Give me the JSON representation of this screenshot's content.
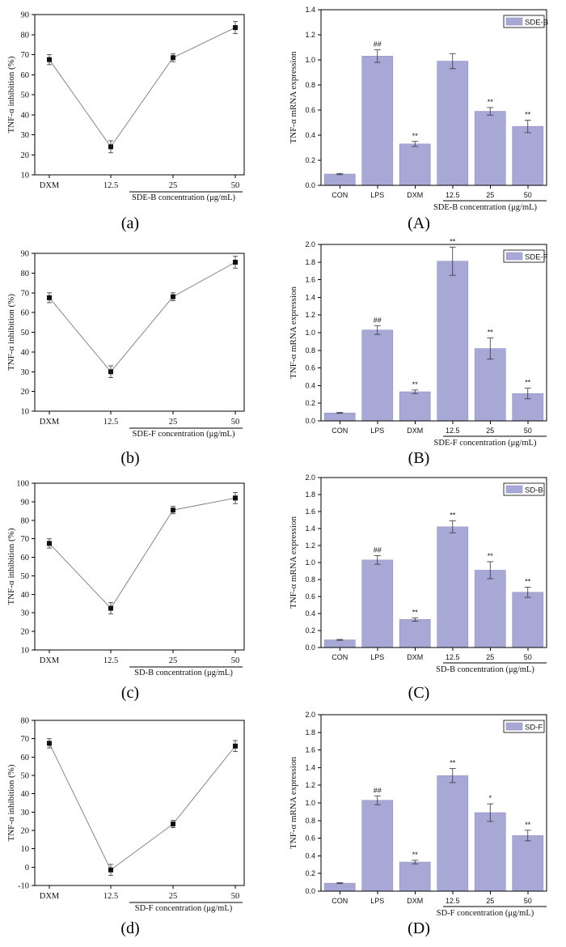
{
  "colors": {
    "bar": "#a8a8d6",
    "line": "#7a7a7a",
    "marker": "#111111"
  },
  "chart_data": [
    {
      "id": "a",
      "panel_label": "(a)",
      "type": "line",
      "categories": [
        "DXM",
        "12.5",
        "25",
        "50"
      ],
      "values": [
        67.5,
        24,
        68.5,
        83.5
      ],
      "errors": [
        2.5,
        3,
        2,
        3
      ],
      "ylabel": "TNF-α inhibition (%)",
      "xlabel": "SDE-B concentration (μg/mL)",
      "ylim": [
        10,
        90
      ],
      "yticks": [
        "10",
        "20",
        "30",
        "40",
        "50",
        "60",
        "70",
        "80",
        "90"
      ]
    },
    {
      "id": "A",
      "panel_label": "(A)",
      "type": "bar",
      "categories": [
        "CON",
        "LPS",
        "DXM",
        "12.5",
        "25",
        "50"
      ],
      "values": [
        0.09,
        1.03,
        0.33,
        0.99,
        0.59,
        0.47
      ],
      "errors": [
        0.005,
        0.05,
        0.02,
        0.06,
        0.03,
        0.05
      ],
      "annotations": [
        "",
        "##",
        "**",
        "",
        "**",
        "**"
      ],
      "legend": "SDE-B",
      "ylabel": "TNF-α mRNA expression",
      "xlabel": "SDE-B concentration (μg/mL)",
      "ylim": [
        0,
        1.4
      ],
      "yticks": [
        "0.0",
        "0.2",
        "0.4",
        "0.6",
        "0.8",
        "1.0",
        "1.2",
        "1.4"
      ]
    },
    {
      "id": "b",
      "panel_label": "(b)",
      "type": "line",
      "categories": [
        "DXM",
        "12.5",
        "25",
        "50"
      ],
      "values": [
        67.5,
        30,
        68,
        85.5
      ],
      "errors": [
        2.5,
        3,
        2,
        3
      ],
      "ylabel": "TNF-α inhibition (%)",
      "xlabel": "SDE-F concentration (μg/mL)",
      "ylim": [
        10,
        90
      ],
      "yticks": [
        "10",
        "20",
        "30",
        "40",
        "50",
        "60",
        "70",
        "80",
        "90"
      ]
    },
    {
      "id": "B",
      "panel_label": "(B)",
      "type": "bar",
      "categories": [
        "CON",
        "LPS",
        "DXM",
        "12.5",
        "25",
        "50"
      ],
      "values": [
        0.09,
        1.03,
        0.33,
        1.81,
        0.82,
        0.31
      ],
      "errors": [
        0.005,
        0.05,
        0.02,
        0.16,
        0.12,
        0.06
      ],
      "annotations": [
        "",
        "##",
        "**",
        "**",
        "**",
        "**"
      ],
      "legend": "SDE-F",
      "ylabel": "TNF-α mRNA expression",
      "xlabel": "SDE-F concentration (μg/mL)",
      "ylim": [
        0,
        2.0
      ],
      "yticks": [
        "0.0",
        "0.2",
        "0.4",
        "0.6",
        "0.8",
        "1.0",
        "1.2",
        "1.4",
        "1.6",
        "1.8",
        "2.0"
      ]
    },
    {
      "id": "c",
      "panel_label": "(c)",
      "type": "line",
      "categories": [
        "DXM",
        "12.5",
        "25",
        "50"
      ],
      "values": [
        67.5,
        32.5,
        85.5,
        92
      ],
      "errors": [
        2.5,
        3,
        2,
        3
      ],
      "ylabel": "TNF-α inhibition (%)",
      "xlabel": "SD-B concentration (μg/mL)",
      "ylim": [
        10,
        100
      ],
      "yticks": [
        "10",
        "20",
        "30",
        "40",
        "50",
        "60",
        "70",
        "80",
        "90",
        "100"
      ]
    },
    {
      "id": "C",
      "panel_label": "(C)",
      "type": "bar",
      "categories": [
        "CON",
        "LPS",
        "DXM",
        "12.5",
        "25",
        "50"
      ],
      "values": [
        0.09,
        1.03,
        0.33,
        1.42,
        0.91,
        0.65
      ],
      "errors": [
        0.005,
        0.05,
        0.02,
        0.07,
        0.1,
        0.06
      ],
      "annotations": [
        "",
        "##",
        "**",
        "**",
        "**",
        "**"
      ],
      "legend": "SD-B",
      "ylabel": "TNF-α mRNA expression",
      "xlabel": "SD-B concentration (μg/mL)",
      "ylim": [
        0,
        2.0
      ],
      "yticks": [
        "0.0",
        "0.2",
        "0.4",
        "0.6",
        "0.8",
        "1.0",
        "1.2",
        "1.4",
        "1.6",
        "1.8",
        "2.0"
      ]
    },
    {
      "id": "d",
      "panel_label": "(d)",
      "type": "line",
      "categories": [
        "DXM",
        "12.5",
        "25",
        "50"
      ],
      "values": [
        67.5,
        -1.5,
        23.5,
        66
      ],
      "errors": [
        2.5,
        3,
        2,
        3
      ],
      "ylabel": "TNF-α inhibition (%)",
      "xlabel": "SD-F concentration (μg/mL)",
      "ylim": [
        -10,
        80
      ],
      "yticks": [
        "-10",
        "0",
        "10",
        "20",
        "30",
        "40",
        "50",
        "60",
        "70",
        "80"
      ]
    },
    {
      "id": "D",
      "panel_label": "(D)",
      "type": "bar",
      "categories": [
        "CON",
        "LPS",
        "DXM",
        "12.5",
        "25",
        "50"
      ],
      "values": [
        0.09,
        1.03,
        0.33,
        1.31,
        0.89,
        0.63
      ],
      "errors": [
        0.005,
        0.05,
        0.02,
        0.08,
        0.1,
        0.06
      ],
      "annotations": [
        "",
        "##",
        "**",
        "**",
        "*",
        "**"
      ],
      "legend": "SD-F",
      "ylabel": "TNF-α mRNA expression",
      "xlabel": "SD-F concentration (μg/mL)",
      "ylim": [
        0,
        2.0
      ],
      "yticks": [
        "0.0",
        "0.2",
        "0.4",
        "0.6",
        "0.8",
        "1.0",
        "1.2",
        "1.4",
        "1.6",
        "1.8",
        "2.0"
      ]
    }
  ]
}
